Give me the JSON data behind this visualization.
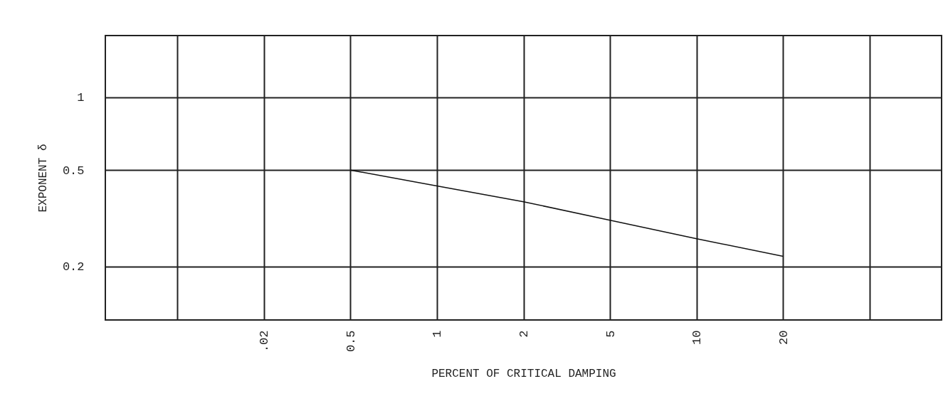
{
  "chart_data": {
    "type": "line",
    "xlabel": "PERCENT OF CRITICAL DAMPING",
    "ylabel": "EXPONENT δ",
    "categories": [
      null,
      ".02",
      "0.5",
      "1",
      "2",
      "5",
      "10",
      "20",
      null
    ],
    "series": [
      {
        "color": "#111111",
        "values": [
          null,
          null,
          0.5,
          0.43,
          0.37,
          0.31,
          0.26,
          0.22,
          null
        ]
      }
    ],
    "log": true,
    "ylim": [
      0.12,
      1.8
    ],
    "yticks": [
      0.2,
      0.5,
      1
    ],
    "grid": true,
    "marker": "none",
    "line_style": "solid"
  }
}
